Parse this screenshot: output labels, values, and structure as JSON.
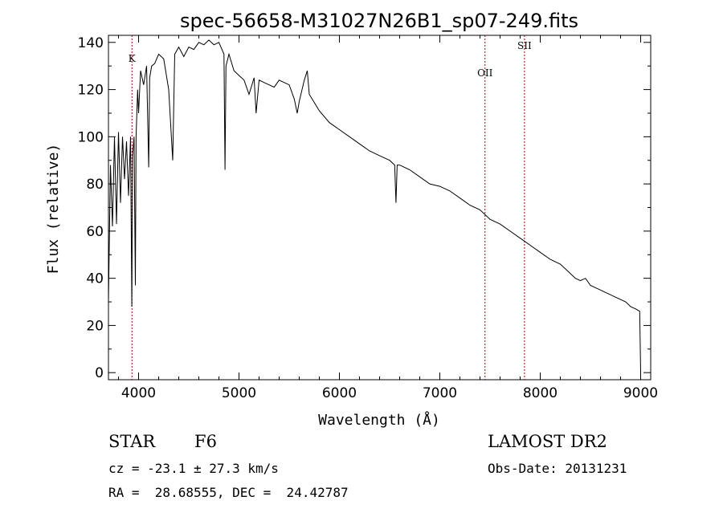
{
  "chart_data": {
    "type": "line",
    "title": "spec-56658-M31027N26B1_sp07-249.fits",
    "xlabel": "Wavelength (Å)",
    "ylabel": "Flux (relative)",
    "xlim": [
      3700,
      9100
    ],
    "ylim": [
      -3,
      143
    ],
    "xticks": [
      4000,
      5000,
      6000,
      7000,
      8000,
      9000
    ],
    "yticks": [
      0,
      20,
      40,
      60,
      80,
      100,
      120,
      140
    ],
    "grid": false,
    "line_color": "#000000",
    "marker_color": "#aa0000",
    "series": [
      {
        "x": [
          3700,
          3720,
          3740,
          3760,
          3780,
          3800,
          3820,
          3840,
          3860,
          3880,
          3900,
          3920,
          3933,
          3940,
          3955,
          3968,
          3975,
          3990,
          4000,
          4020,
          4050,
          4080,
          4101,
          4110,
          4130,
          4160,
          4200,
          4250,
          4300,
          4340,
          4360,
          4400,
          4450,
          4500,
          4550,
          4600,
          4650,
          4700,
          4750,
          4800,
          4850,
          4861,
          4870,
          4900,
          4950,
          5000,
          5050,
          5100,
          5150,
          5170,
          5200,
          5250,
          5300,
          5350,
          5400,
          5450,
          5500,
          5550,
          5580,
          5600,
          5650,
          5680,
          5700,
          5800,
          5900,
          6000,
          6100,
          6200,
          6300,
          6400,
          6500,
          6550,
          6563,
          6575,
          6600,
          6700,
          6800,
          6900,
          7000,
          7100,
          7200,
          7300,
          7400,
          7500,
          7600,
          7700,
          7800,
          7900,
          8000,
          8100,
          8200,
          8300,
          8350,
          8400,
          8450,
          8500,
          8550,
          8600,
          8650,
          8700,
          8750,
          8800,
          8850,
          8900,
          8950,
          8990,
          9000
        ],
        "y": [
          30,
          88,
          62,
          100,
          63,
          102,
          72,
          100,
          82,
          98,
          75,
          100,
          28,
          92,
          100,
          37,
          100,
          120,
          110,
          128,
          122,
          130,
          87,
          125,
          130,
          131,
          135,
          133,
          120,
          90,
          135,
          138,
          134,
          138,
          137,
          140,
          139,
          141,
          139,
          140,
          135,
          86,
          130,
          135,
          128,
          126,
          124,
          118,
          125,
          110,
          124,
          123,
          122,
          121,
          124,
          123,
          122,
          116,
          110,
          115,
          124,
          128,
          118,
          111,
          106,
          103,
          100,
          97,
          94,
          92,
          90,
          88,
          72,
          88,
          88,
          86,
          83,
          80,
          79,
          77,
          74,
          71,
          69,
          65,
          63,
          60,
          57,
          54,
          51,
          48,
          46,
          42,
          40,
          39,
          40,
          37,
          36,
          35,
          34,
          33,
          32,
          31,
          30,
          28,
          27,
          26,
          0
        ]
      }
    ],
    "line_markers": [
      {
        "label": "K",
        "x": 3934
      },
      {
        "label": "OII",
        "x": 7450
      },
      {
        "label": "SII",
        "x": 7843
      }
    ]
  },
  "info": {
    "object_class": "STAR",
    "subclass": "F6",
    "survey": "LAMOST DR2",
    "redshift": "cz = -23.1 ± 27.3 km/s",
    "obs_date": "Obs-Date: 20131231",
    "coords": "RA =  28.68555, DEC =  24.42787"
  }
}
